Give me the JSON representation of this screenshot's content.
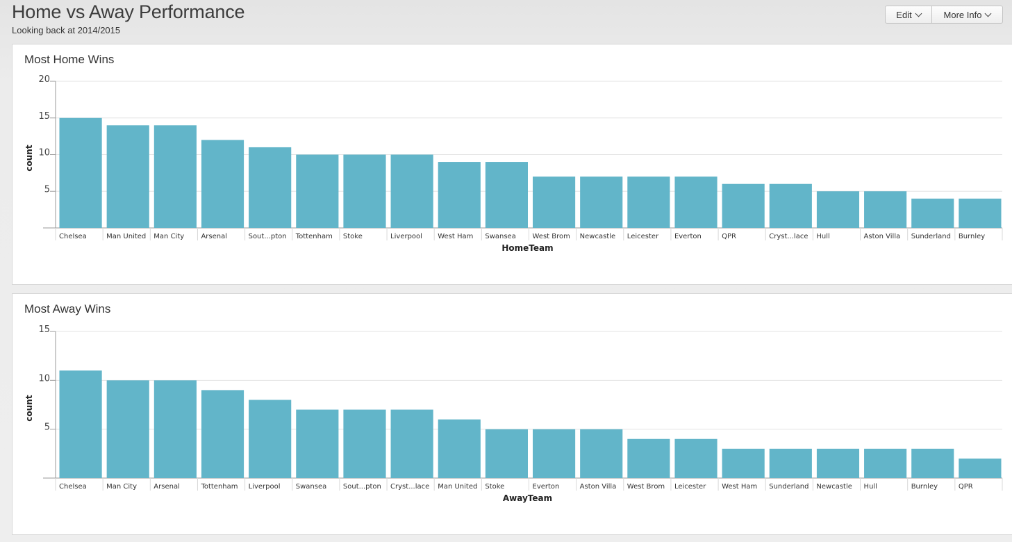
{
  "header": {
    "title": "Home vs Away Performance",
    "subtitle": "Looking back at 2014/2015",
    "edit_label": "Edit",
    "more_info_label": "More Info"
  },
  "colors": {
    "bar": "#62b5c9",
    "grid": "#e3e3e3",
    "axis": "#9a9a9a"
  },
  "panels": [
    {
      "title": "Most Home Wins"
    },
    {
      "title": "Most Away Wins"
    }
  ],
  "chart_data": [
    {
      "type": "bar",
      "title": "Most Home Wins",
      "xlabel": "HomeTeam",
      "ylabel": "count",
      "ylim": [
        0,
        20
      ],
      "yticks": [
        5,
        10,
        15,
        20
      ],
      "grid": true,
      "categories": [
        "Chelsea",
        "Man United",
        "Man City",
        "Arsenal",
        "Sout...pton",
        "Tottenham",
        "Stoke",
        "Liverpool",
        "West Ham",
        "Swansea",
        "West Brom",
        "Newcastle",
        "Leicester",
        "Everton",
        "QPR",
        "Cryst...lace",
        "Hull",
        "Aston Villa",
        "Sunderland",
        "Burnley"
      ],
      "values": [
        15,
        14,
        14,
        12,
        11,
        10,
        10,
        10,
        9,
        9,
        7,
        7,
        7,
        7,
        6,
        6,
        5,
        5,
        4,
        4
      ]
    },
    {
      "type": "bar",
      "title": "Most Away Wins",
      "xlabel": "AwayTeam",
      "ylabel": "count",
      "ylim": [
        0,
        15
      ],
      "yticks": [
        5,
        10,
        15
      ],
      "grid": true,
      "categories": [
        "Chelsea",
        "Man City",
        "Arsenal",
        "Tottenham",
        "Liverpool",
        "Swansea",
        "Sout...pton",
        "Cryst...lace",
        "Man United",
        "Stoke",
        "Everton",
        "Aston Villa",
        "West Brom",
        "Leicester",
        "West Ham",
        "Sunderland",
        "Newcastle",
        "Hull",
        "Burnley",
        "QPR"
      ],
      "values": [
        11,
        10,
        10,
        9,
        8,
        7,
        7,
        7,
        6,
        5,
        5,
        5,
        4,
        4,
        3,
        3,
        3,
        3,
        3,
        2
      ]
    }
  ]
}
